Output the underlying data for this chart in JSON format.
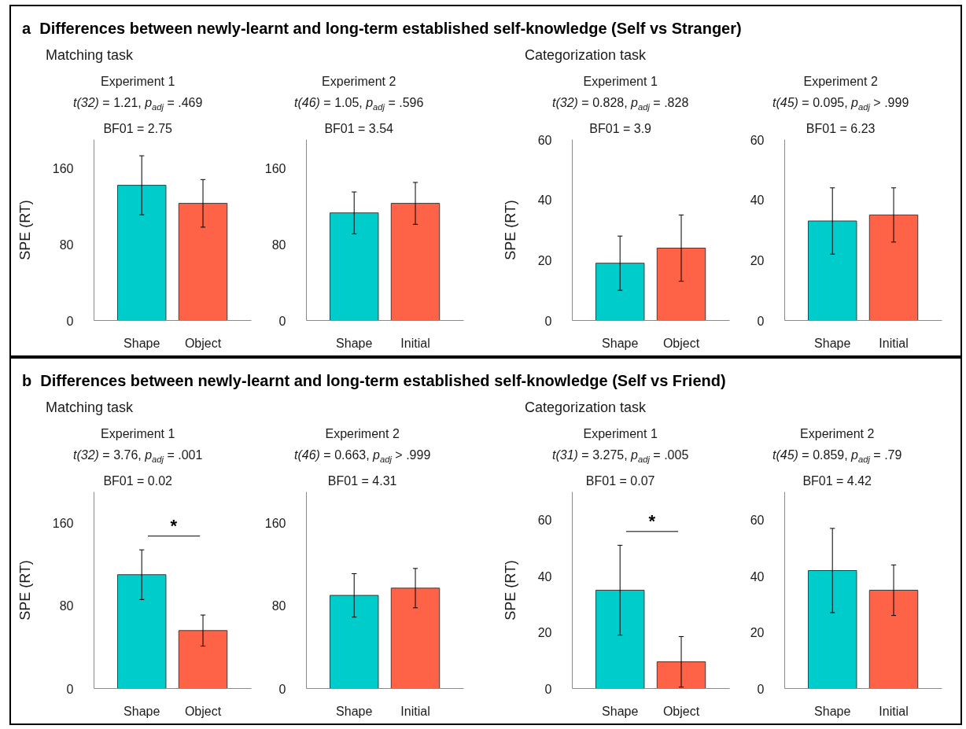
{
  "chart_data": [
    {
      "type": "bar",
      "title": "Experiment 1",
      "subtitle": "t(32) = 1.21, p$_{adj}$ = .469\nBF01 = 2.75",
      "ylabel": "SPE (RT)",
      "categories": [
        "Shape",
        "Object"
      ],
      "values": [
        142,
        123
      ],
      "errors": [
        31,
        25
      ],
      "colors": [
        "#00cccc",
        "#ff6347"
      ],
      "ylim": [
        0,
        190
      ],
      "yticks": [
        0,
        80,
        160
      ],
      "annotations": [
        "a  Differences between newly-learnt and long-term established self-knowledge (Self vs Stranger)",
        "Matching task"
      ]
    },
    {
      "type": "bar",
      "title": "Experiment 2",
      "subtitle": "t(46) = 1.05, p$_{adj}$ = .596\nBF01 = 3.54",
      "categories": [
        "Shape",
        "Initial"
      ],
      "values": [
        113,
        123
      ],
      "errors": [
        22,
        22
      ],
      "colors": [
        "#00cccc",
        "#ff6347"
      ],
      "ylim": [
        0,
        190
      ],
      "yticks": [
        0,
        80,
        160
      ]
    },
    {
      "type": "bar",
      "title": "Experiment 1",
      "subtitle": "t(32) = 0.828, p$_{adj}$ = .828\nBF01 = 3.9",
      "ylabel": "SPE (RT)",
      "categories": [
        "Shape",
        "Object"
      ],
      "values": [
        19,
        24
      ],
      "errors": [
        9,
        11
      ],
      "colors": [
        "#00cccc",
        "#ff6347"
      ],
      "ylim": [
        0,
        60
      ],
      "yticks": [
        0,
        20,
        40,
        60
      ],
      "annotations": [
        "Categorization task"
      ]
    },
    {
      "type": "bar",
      "title": "Experiment 2",
      "subtitle": "t(45) = 0.095, p$_{adj}$ > .999\nBF01 = 6.23",
      "categories": [
        "Shape",
        "Initial"
      ],
      "values": [
        33,
        35
      ],
      "errors": [
        11,
        9
      ],
      "colors": [
        "#00cccc",
        "#ff6347"
      ],
      "ylim": [
        0,
        60
      ],
      "yticks": [
        0,
        20,
        40,
        60
      ]
    },
    {
      "type": "bar",
      "title": "Experiment 1",
      "subtitle": "t(32) = 3.76, p$_{adj}$ = .001\nBF01 = 0.02",
      "ylabel": "SPE (RT)",
      "categories": [
        "Shape",
        "Object"
      ],
      "values": [
        110,
        56
      ],
      "errors": [
        24,
        15
      ],
      "colors": [
        "#00cccc",
        "#ff6347"
      ],
      "ylim": [
        0,
        190
      ],
      "yticks": [
        0,
        80,
        160
      ],
      "annotations": [
        "b  Differences between newly-learnt and long-term established self-knowledge (Self vs Friend)",
        "Matching task",
        "*"
      ]
    },
    {
      "type": "bar",
      "title": "Experiment 2",
      "subtitle": "t(46) = 0.663, p$_{adj}$ > .999\nBF01 = 4.31",
      "categories": [
        "Shape",
        "Initial"
      ],
      "values": [
        90,
        97
      ],
      "errors": [
        21,
        19
      ],
      "colors": [
        "#00cccc",
        "#ff6347"
      ],
      "ylim": [
        0,
        190
      ],
      "yticks": [
        0,
        80,
        160
      ]
    },
    {
      "type": "bar",
      "title": "Experiment 1",
      "subtitle": "t(31) = 3.275, p$_{adj}$ = .005\nBF01 = 0.07",
      "ylabel": "SPE (RT)",
      "categories": [
        "Shape",
        "Object"
      ],
      "values": [
        35,
        9.5
      ],
      "errors": [
        16,
        9
      ],
      "colors": [
        "#00cccc",
        "#ff6347"
      ],
      "ylim": [
        0,
        70
      ],
      "yticks": [
        0,
        20,
        40,
        60
      ],
      "annotations": [
        "Categorization task",
        "*"
      ]
    },
    {
      "type": "bar",
      "title": "Experiment 2",
      "subtitle": "t(45) = 0.859, p$_{adj}$ = .79\nBF01 = 4.42",
      "categories": [
        "Shape",
        "Initial"
      ],
      "values": [
        42,
        35
      ],
      "errors": [
        15,
        9
      ],
      "colors": [
        "#00cccc",
        "#ff6347"
      ],
      "ylim": [
        0,
        70
      ],
      "yticks": [
        0,
        20,
        40,
        60
      ]
    }
  ]
}
